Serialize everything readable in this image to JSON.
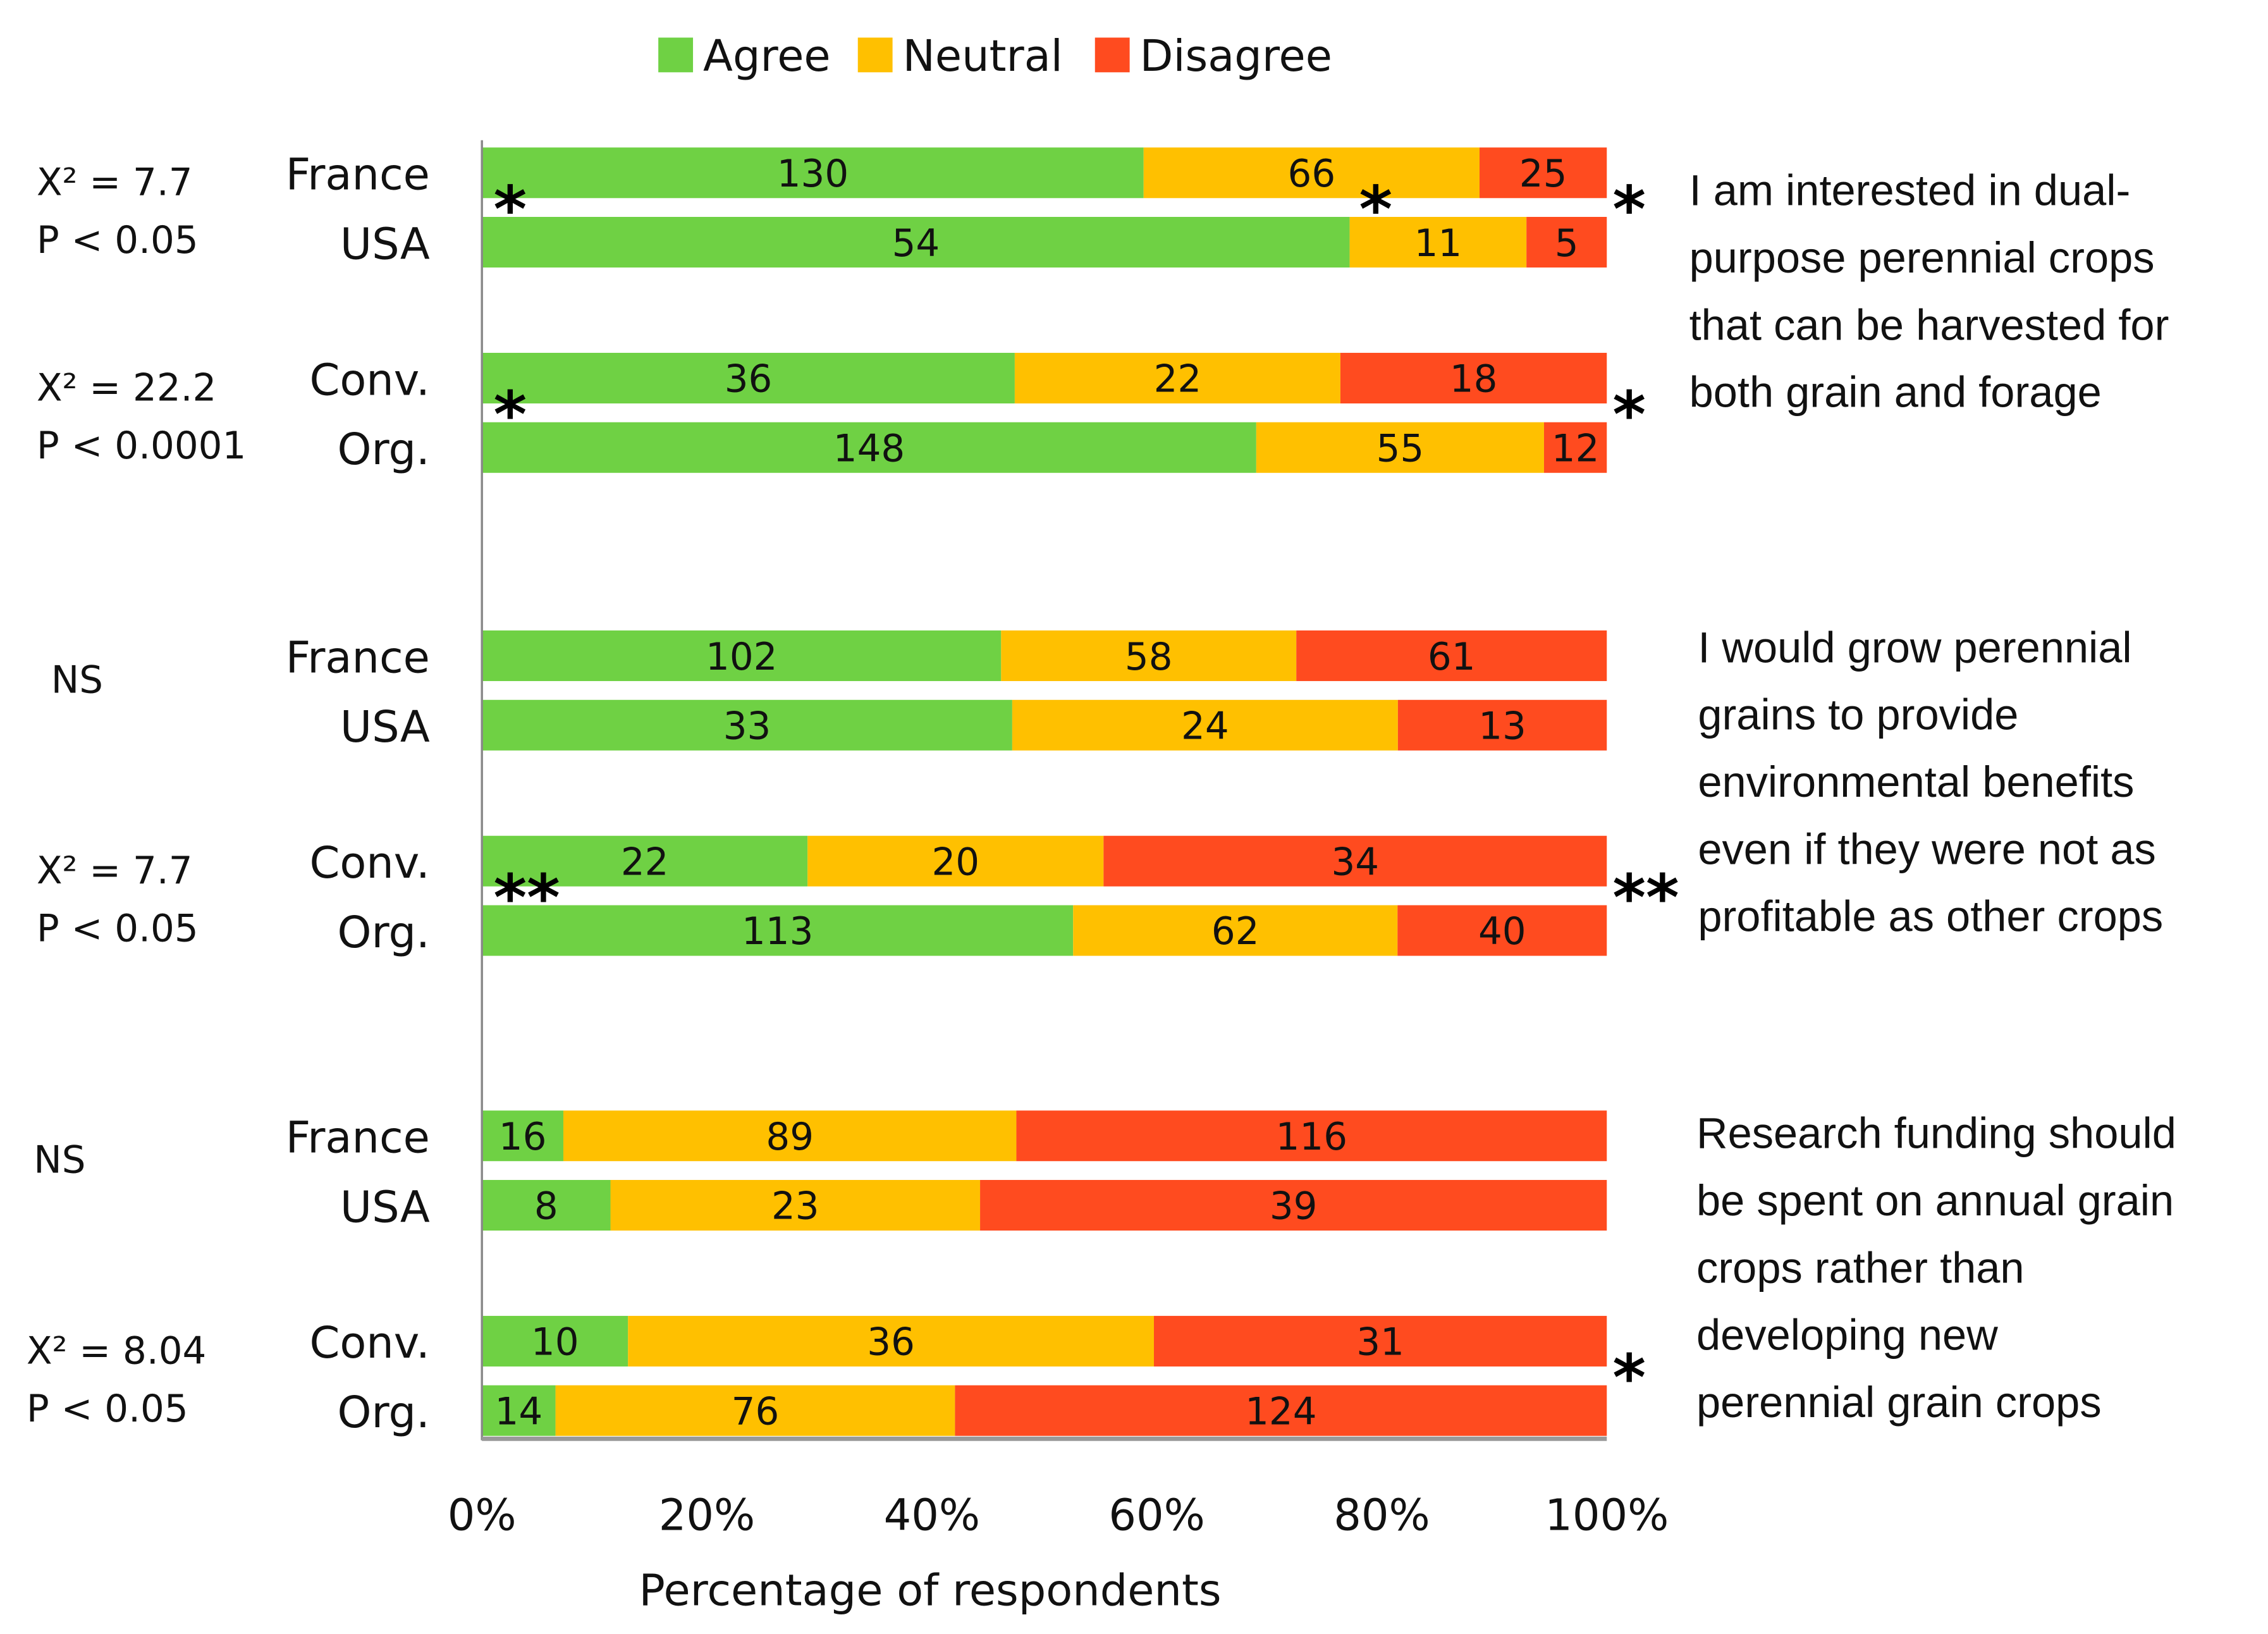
{
  "chart_data": {
    "type": "bar",
    "orientation": "horizontal",
    "stacked": "percent",
    "xlabel": "Percentage of respondents",
    "xticks": [
      "0%",
      "20%",
      "40%",
      "60%",
      "80%",
      "100%"
    ],
    "xlim": [
      0,
      100
    ],
    "legend": {
      "placement": "top",
      "entries": [
        "Agree",
        "Neutral",
        "Disagree"
      ]
    },
    "colors": {
      "Agree": "#6fd144",
      "Neutral": "#ffc000",
      "Disagree": "#ff4b1f"
    },
    "groups": [
      {
        "statement": [
          "I am interested in dual-",
          "purpose perennial crops",
          "that can be harvested for",
          "both grain and forage"
        ],
        "pairs": [
          {
            "stat": [
              "X² = 7.7",
              "P < 0.05"
            ],
            "bars": [
              {
                "label": "France",
                "values": [
                  130,
                  66,
                  25
                ]
              },
              {
                "label": "USA",
                "values": [
                  54,
                  11,
                  5
                ]
              }
            ],
            "markers": [
              "*",
              "*",
              "*"
            ]
          },
          {
            "stat": [
              "X² = 22.2",
              "P < 0.0001"
            ],
            "bars": [
              {
                "label": "Conv.",
                "values": [
                  36,
                  22,
                  18
                ]
              },
              {
                "label": "Org.",
                "values": [
                  148,
                  55,
                  12
                ]
              }
            ],
            "markers": [
              "*",
              "",
              "*"
            ]
          }
        ]
      },
      {
        "statement": [
          "I would grow perennial",
          "grains to provide",
          "environmental benefits",
          "even if they were not as",
          "profitable as other crops"
        ],
        "pairs": [
          {
            "stat": [
              "NS"
            ],
            "bars": [
              {
                "label": "France",
                "values": [
                  102,
                  58,
                  61
                ]
              },
              {
                "label": "USA",
                "values": [
                  33,
                  24,
                  13
                ]
              }
            ],
            "markers": [
              "",
              "",
              ""
            ]
          },
          {
            "stat": [
              "X² = 7.7",
              "P <  0.05"
            ],
            "bars": [
              {
                "label": "Conv.",
                "values": [
                  22,
                  20,
                  34
                ]
              },
              {
                "label": "Org.",
                "values": [
                  113,
                  62,
                  40
                ]
              }
            ],
            "markers": [
              "**",
              "",
              "**"
            ]
          }
        ]
      },
      {
        "statement": [
          "Research funding should",
          "be spent on annual grain",
          "crops rather than",
          "developing new",
          "perennial grain crops"
        ],
        "pairs": [
          {
            "stat": [
              "NS"
            ],
            "bars": [
              {
                "label": "France",
                "values": [
                  16,
                  89,
                  116
                ]
              },
              {
                "label": "USA",
                "values": [
                  8,
                  23,
                  39
                ]
              }
            ],
            "markers": [
              "",
              "",
              ""
            ]
          },
          {
            "stat": [
              "X² = 8.04",
              "P < 0.05"
            ],
            "bars": [
              {
                "label": "Conv.",
                "values": [
                  10,
                  36,
                  31
                ]
              },
              {
                "label": "Org.",
                "values": [
                  14,
                  76,
                  124
                ]
              }
            ],
            "markers": [
              "",
              "",
              "*"
            ]
          }
        ]
      }
    ]
  }
}
